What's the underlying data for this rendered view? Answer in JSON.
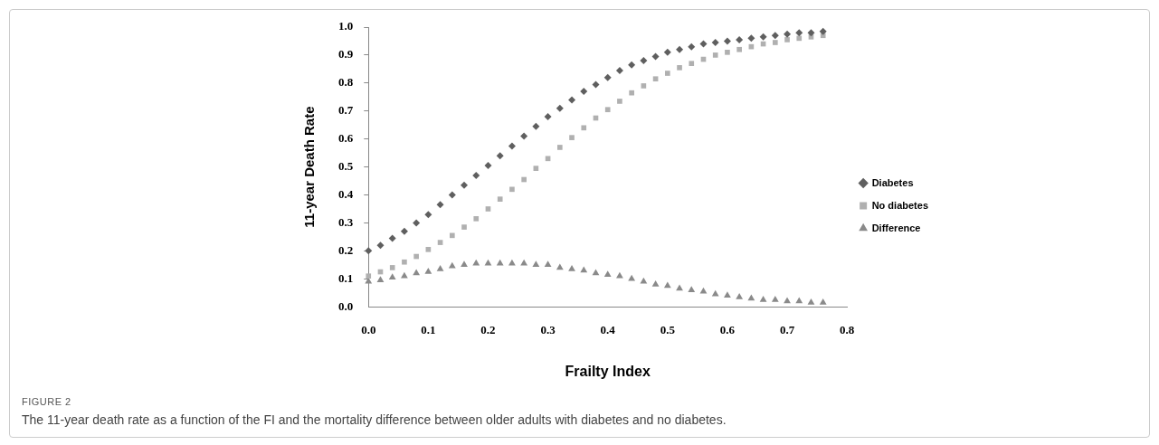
{
  "chart_data": {
    "type": "scatter",
    "xlabel": "Frailty Index",
    "ylabel": "11-year Death Rate",
    "x": [
      0,
      0.02,
      0.04,
      0.06,
      0.08,
      0.1,
      0.12,
      0.14,
      0.16,
      0.18,
      0.2,
      0.22,
      0.24,
      0.26,
      0.28,
      0.3,
      0.32,
      0.34,
      0.36,
      0.38,
      0.4,
      0.42,
      0.44,
      0.46,
      0.48,
      0.5,
      0.52,
      0.54,
      0.56,
      0.58,
      0.6,
      0.62,
      0.64,
      0.66,
      0.68,
      0.7,
      0.72,
      0.74,
      0.76
    ],
    "series": [
      {
        "name": "Diabetes",
        "color": "#5f5f5f",
        "marker": "diamond",
        "values": [
          0.2,
          0.22,
          0.245,
          0.27,
          0.3,
          0.33,
          0.365,
          0.4,
          0.435,
          0.47,
          0.505,
          0.54,
          0.575,
          0.61,
          0.645,
          0.68,
          0.71,
          0.74,
          0.77,
          0.795,
          0.82,
          0.845,
          0.865,
          0.88,
          0.895,
          0.91,
          0.92,
          0.93,
          0.94,
          0.945,
          0.95,
          0.955,
          0.96,
          0.965,
          0.97,
          0.975,
          0.98,
          0.98,
          0.985
        ]
      },
      {
        "name": "No diabetes",
        "color": "#b0b0b0",
        "marker": "square",
        "values": [
          0.11,
          0.125,
          0.14,
          0.16,
          0.18,
          0.205,
          0.23,
          0.255,
          0.285,
          0.315,
          0.35,
          0.385,
          0.42,
          0.455,
          0.495,
          0.53,
          0.57,
          0.605,
          0.64,
          0.675,
          0.705,
          0.735,
          0.765,
          0.79,
          0.815,
          0.835,
          0.855,
          0.87,
          0.885,
          0.9,
          0.91,
          0.92,
          0.93,
          0.94,
          0.945,
          0.955,
          0.96,
          0.965,
          0.97
        ]
      },
      {
        "name": "Difference",
        "color": "#8a8a8a",
        "marker": "triangle",
        "values": [
          0.09,
          0.095,
          0.105,
          0.11,
          0.12,
          0.125,
          0.135,
          0.145,
          0.15,
          0.155,
          0.155,
          0.155,
          0.155,
          0.155,
          0.15,
          0.15,
          0.14,
          0.135,
          0.13,
          0.12,
          0.115,
          0.11,
          0.1,
          0.09,
          0.08,
          0.075,
          0.065,
          0.06,
          0.055,
          0.045,
          0.04,
          0.035,
          0.03,
          0.025,
          0.025,
          0.02,
          0.02,
          0.015,
          0.015
        ]
      }
    ],
    "xlim": [
      0,
      0.8
    ],
    "xticks": [
      {
        "value": 0,
        "label": "0.0"
      },
      0.1,
      0.2,
      0.3,
      0.4,
      0.5,
      0.6,
      0.7,
      0.8
    ],
    "ylim": [
      0,
      1
    ],
    "yticks": [
      {
        "value": 0,
        "label": "0.0"
      },
      0.1,
      0.2,
      0.3,
      0.4,
      0.5,
      0.6,
      0.7,
      0.8,
      0.9,
      {
        "value": 1,
        "label": "1.0"
      }
    ],
    "grid": false,
    "legend": "right",
    "annotations": [
      "FIGURE 2",
      "The 11-year death rate as a function of the FI and the mortality difference between older adults with diabetes and no diabetes."
    ]
  }
}
